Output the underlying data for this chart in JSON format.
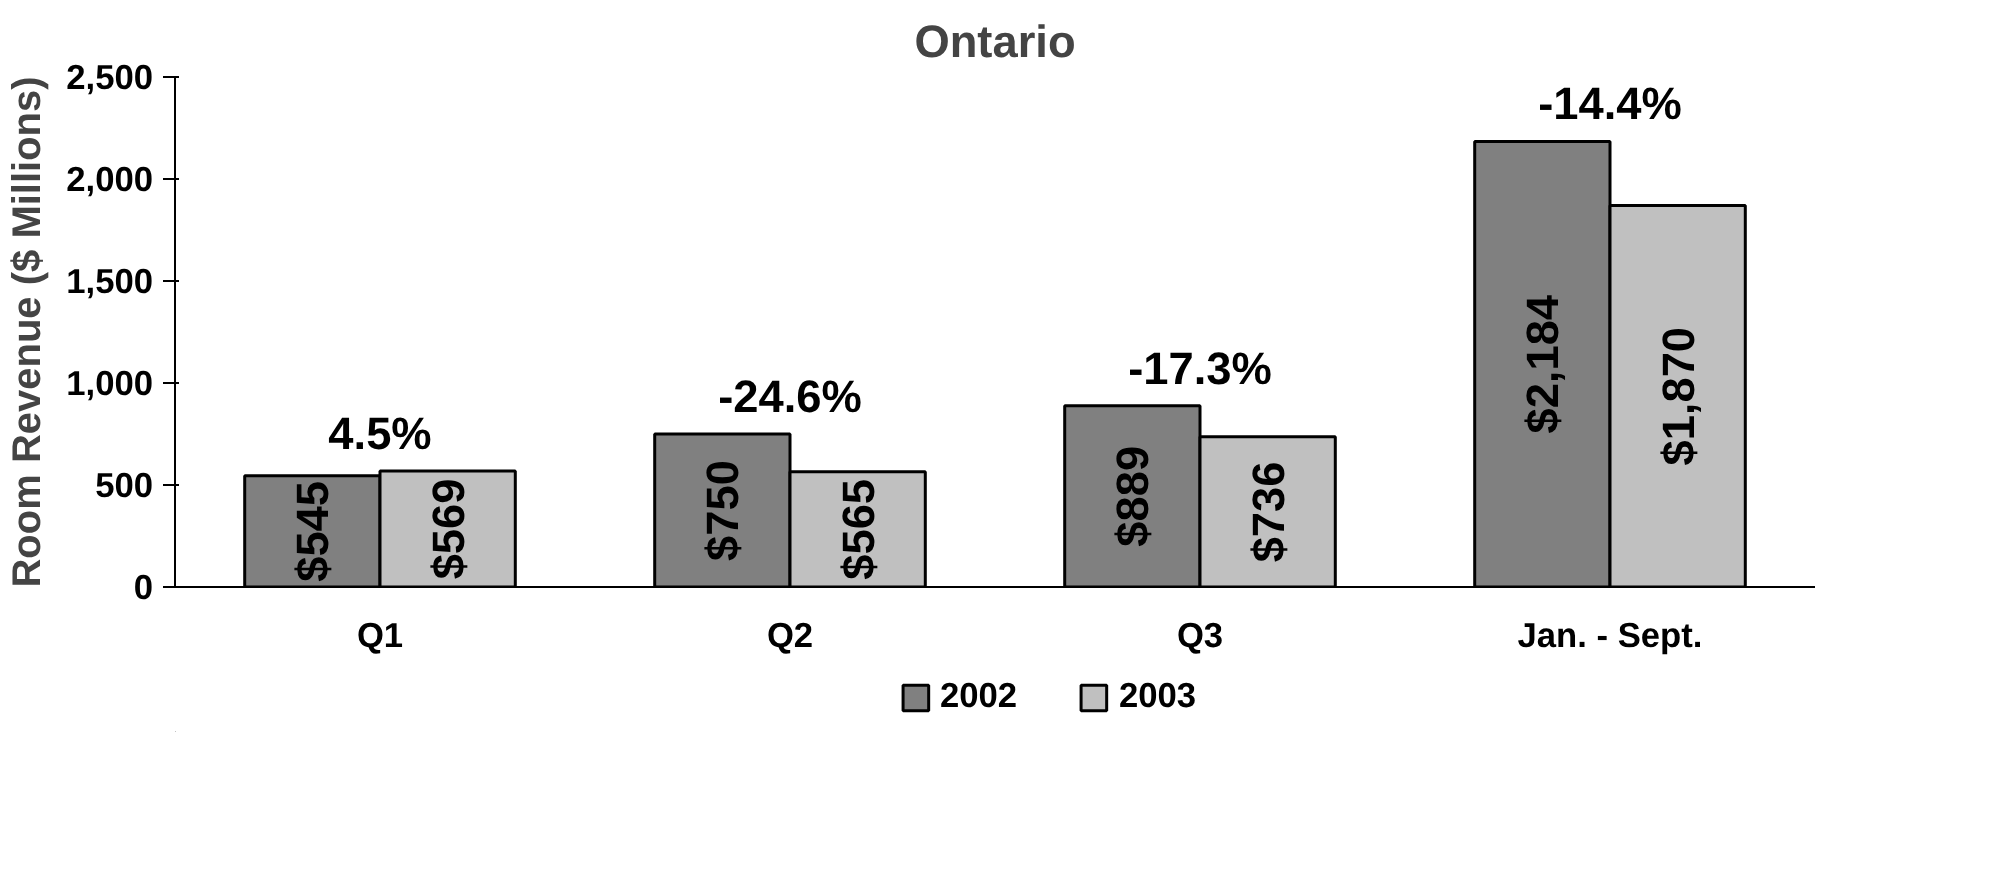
{
  "chart_data": {
    "type": "bar",
    "title": "Ontario",
    "ylabel": "Room Revenue ($ Millions)",
    "categories": [
      "Q1",
      "Q2",
      "Q3",
      "Jan. - Sept."
    ],
    "series": [
      {
        "name": "2002",
        "color": "#808080",
        "values": [
          545,
          750,
          889,
          2184
        ]
      },
      {
        "name": "2003",
        "color": "#c0c0c0",
        "values": [
          569,
          565,
          736,
          1870
        ]
      }
    ],
    "ylim": [
      0,
      2500
    ],
    "yticks": [
      {
        "value": 0,
        "label": "0"
      },
      {
        "value": 500,
        "label": "500"
      },
      {
        "value": 1000,
        "label": "1,000"
      },
      {
        "value": 1500,
        "label": "1,500"
      },
      {
        "value": 2000,
        "label": "2,000"
      },
      {
        "value": 2500,
        "label": "2,500"
      }
    ],
    "value_labels": [
      [
        "$545",
        "$750",
        "$889",
        "$2,184"
      ],
      [
        "$569",
        "$565",
        "$736",
        "$1,870"
      ]
    ],
    "annotations": [
      "4.5%",
      "-24.6%",
      "-17.3%",
      "-14.4%"
    ],
    "grid": false,
    "legend": "bottom"
  }
}
